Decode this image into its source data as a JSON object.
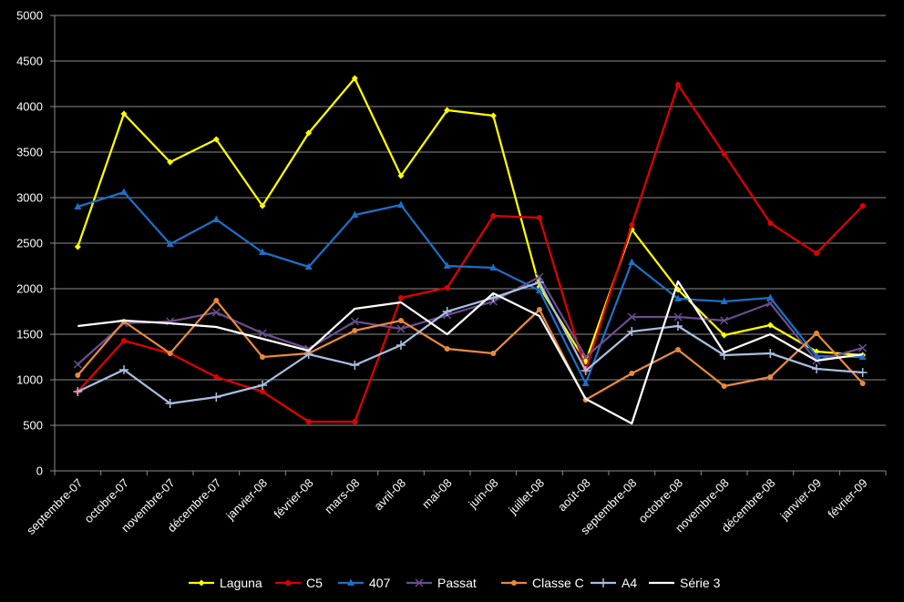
{
  "chart_data": {
    "type": "line",
    "title": "",
    "xlabel": "",
    "ylabel": "",
    "ylim": [
      0,
      5000
    ],
    "y_ticks": [
      0,
      500,
      1000,
      1500,
      2000,
      2500,
      3000,
      3500,
      4000,
      4500,
      5000
    ],
    "grid": "horizontal",
    "legend_position": "bottom",
    "background": "#000000",
    "categories": [
      "septembre-07",
      "octobre-07",
      "novembre-07",
      "décembre-07",
      "janvier-08",
      "février-08",
      "mars-08",
      "avril-08",
      "mai-08",
      "juin-08",
      "juillet-08",
      "août-08",
      "septembre-08",
      "octobre-08",
      "novembre-08",
      "décembre-08",
      "janvier-09",
      "février-09"
    ],
    "series": [
      {
        "name": "Laguna",
        "color": "#ffff00",
        "marker": "diamond",
        "values": [
          2460,
          3920,
          3390,
          3640,
          2910,
          3710,
          4310,
          3240,
          3960,
          3900,
          2020,
          1200,
          2650,
          1990,
          1490,
          1600,
          1310,
          1270
        ]
      },
      {
        "name": "C5",
        "color": "#e00000",
        "marker": "circle",
        "values": [
          870,
          1430,
          1290,
          1030,
          870,
          540,
          540,
          1900,
          2010,
          2800,
          2780,
          1100,
          2700,
          4240,
          3480,
          2720,
          2390,
          2910
        ]
      },
      {
        "name": "407",
        "color": "#1e6fc4",
        "marker": "triangle",
        "values": [
          2900,
          3060,
          2490,
          2760,
          2400,
          2240,
          2810,
          2920,
          2250,
          2230,
          1980,
          960,
          2290,
          1890,
          1860,
          1900,
          1260,
          1250
        ]
      },
      {
        "name": "Passat",
        "color": "#6a4d8f",
        "marker": "x",
        "values": [
          1170,
          1620,
          1640,
          1740,
          1510,
          1340,
          1640,
          1560,
          1710,
          1860,
          2130,
          1250,
          1690,
          1690,
          1650,
          1840,
          1210,
          1350
        ]
      },
      {
        "name": "Classe C",
        "color": "#e8893d",
        "marker": "circle",
        "values": [
          1050,
          1640,
          1290,
          1870,
          1250,
          1290,
          1540,
          1650,
          1340,
          1290,
          1770,
          780,
          1070,
          1330,
          930,
          1030,
          1510,
          960
        ]
      },
      {
        "name": "A4",
        "color": "#a9bfe0",
        "marker": "plus",
        "values": [
          870,
          1110,
          740,
          810,
          940,
          1280,
          1160,
          1380,
          1750,
          1900,
          2070,
          1100,
          1530,
          1590,
          1270,
          1290,
          1120,
          1080
        ]
      },
      {
        "name": "Série 3",
        "color": "#ffffff",
        "marker": "none",
        "values": [
          1590,
          1650,
          1620,
          1580,
          1450,
          1320,
          1780,
          1850,
          1500,
          1950,
          1700,
          790,
          520,
          2080,
          1300,
          1500,
          1210,
          1280
        ]
      }
    ]
  }
}
